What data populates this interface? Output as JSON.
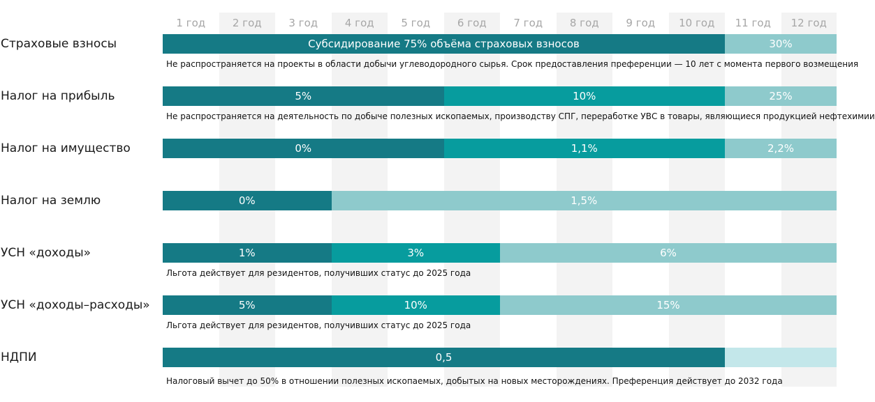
{
  "colors": {
    "dark": "#157a85",
    "mid": "#079c9e",
    "light": "#8ecacc",
    "pale": "#c3e7ea",
    "stripe": "#f3f3f3",
    "year_text": "#a6a6a6"
  },
  "chart_data": {
    "type": "timeline",
    "years": [
      "1 год",
      "2 год",
      "3 год",
      "4 год",
      "5 год",
      "6 год",
      "7 год",
      "8 год",
      "9 год",
      "10 год",
      "11 год",
      "12 год"
    ],
    "rows": [
      {
        "label": "Страховые взносы",
        "segments": [
          {
            "start": 1,
            "end": 10,
            "text": "Субсидирование 75% объёма страховых взносов",
            "tone": "dark"
          },
          {
            "start": 11,
            "end": 12,
            "text": "30%",
            "tone": "light"
          }
        ],
        "note": "Не распространяется на проекты в области добычи углеводородного сырья. Срок предоставления преференции — 10 лет с момента первого возмещения"
      },
      {
        "label": "Налог на прибыль",
        "segments": [
          {
            "start": 1,
            "end": 5,
            "text": "5%",
            "tone": "dark"
          },
          {
            "start": 6,
            "end": 10,
            "text": "10%",
            "tone": "mid"
          },
          {
            "start": 11,
            "end": 12,
            "text": "25%",
            "tone": "light"
          }
        ],
        "note": "Не распространяется на деятельность по добыче полезных ископаемых, производству СПГ, переработке УВС в товары, являющиеся продукцией нефтехимии"
      },
      {
        "label": "Налог на имущество",
        "segments": [
          {
            "start": 1,
            "end": 5,
            "text": "0%",
            "tone": "dark"
          },
          {
            "start": 6,
            "end": 10,
            "text": "1,1%",
            "tone": "mid"
          },
          {
            "start": 11,
            "end": 12,
            "text": "2,2%",
            "tone": "light"
          }
        ],
        "note": ""
      },
      {
        "label": "Налог на землю",
        "segments": [
          {
            "start": 1,
            "end": 3,
            "text": "0%",
            "tone": "dark"
          },
          {
            "start": 4,
            "end": 12,
            "text": "1,5%",
            "tone": "light"
          }
        ],
        "note": ""
      },
      {
        "label": "УСН «доходы»",
        "segments": [
          {
            "start": 1,
            "end": 3,
            "text": "1%",
            "tone": "dark"
          },
          {
            "start": 4,
            "end": 6,
            "text": "3%",
            "tone": "mid"
          },
          {
            "start": 7,
            "end": 12,
            "text": "6%",
            "tone": "light"
          }
        ],
        "note": "Льгота действует для резидентов, получивших статус до 2025 года"
      },
      {
        "label": "УСН «доходы–расходы»",
        "segments": [
          {
            "start": 1,
            "end": 3,
            "text": "5%",
            "tone": "dark"
          },
          {
            "start": 4,
            "end": 6,
            "text": "10%",
            "tone": "mid"
          },
          {
            "start": 7,
            "end": 12,
            "text": "15%",
            "tone": "light"
          }
        ],
        "note": "Льгота действует для резидентов, получивших статус до 2025 года"
      },
      {
        "label": "НДПИ",
        "segments": [
          {
            "start": 1,
            "end": 10,
            "text": "0,5",
            "tone": "dark"
          },
          {
            "start": 11,
            "end": 12,
            "text": "",
            "tone": "pale"
          }
        ],
        "note": "Налоговый вычет до 50% в отношении полезных ископаемых, добытых на новых месторождениях. Преференция действует до 2032 года"
      }
    ]
  }
}
